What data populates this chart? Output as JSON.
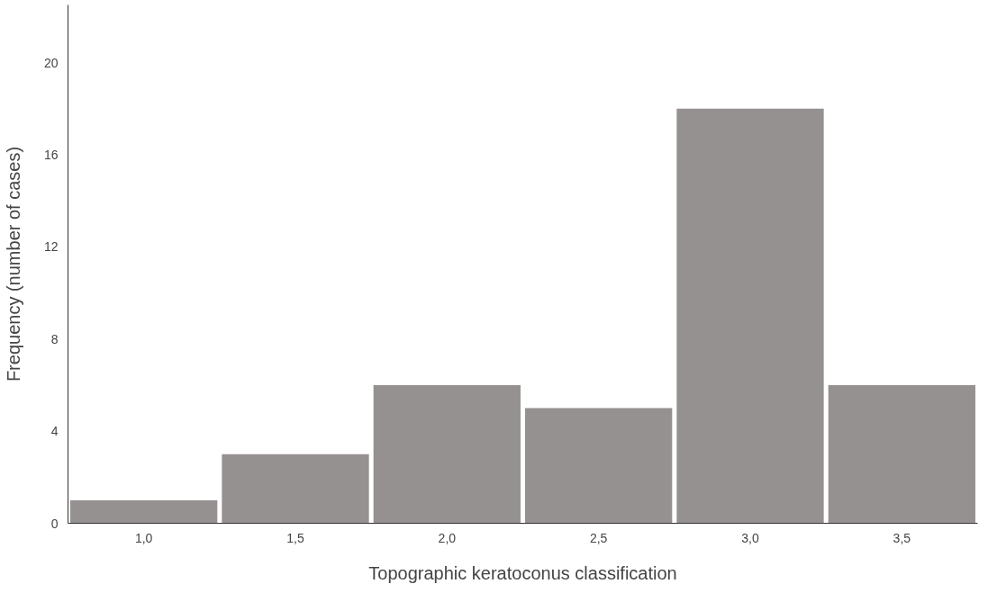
{
  "chart_data": {
    "type": "bar",
    "xlabel": "Topographic keratoconus classification",
    "ylabel": "Frequency (number of cases)",
    "categories": [
      "1,0",
      "1,5",
      "2,0",
      "2,5",
      "3,0",
      "3,5"
    ],
    "values": [
      1,
      3,
      6,
      5,
      18,
      6
    ],
    "color": "#959190",
    "ylim": [
      0,
      22.5
    ],
    "yticks": [
      0,
      4,
      8,
      12,
      16,
      20
    ],
    "grid": false
  }
}
